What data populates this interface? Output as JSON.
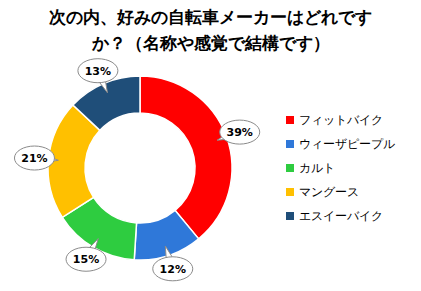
{
  "chart_data": {
    "type": "pie",
    "title": "次の内、好みの自転車メーカーはどれですか？（名称や感覚で結構です）",
    "categories": [
      "フィットバイク",
      "ウィーザピープル",
      "カルト",
      "マングース",
      "エスイーバイク"
    ],
    "values": [
      39,
      12,
      15,
      21,
      13
    ],
    "value_labels": [
      "39%",
      "12%",
      "15%",
      "21%",
      "13%"
    ],
    "colors": [
      "#ff0000",
      "#2f78d9",
      "#2ecc40",
      "#ffc000",
      "#1f4e79"
    ],
    "data_labels": true,
    "legend": "right"
  }
}
